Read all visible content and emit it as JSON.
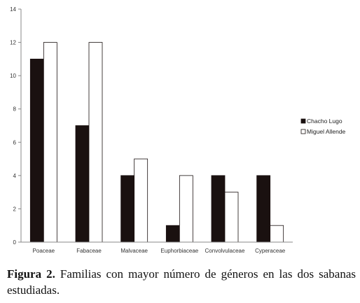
{
  "chart_data": {
    "type": "bar",
    "categories": [
      "Poaceae",
      "Fabaceae",
      "Malvaceae",
      "Euphorbiaceae",
      "Convolvulaceae",
      "Cyperaceae"
    ],
    "series": [
      {
        "name": "Chacho Lugo",
        "values": [
          11,
          7,
          4,
          1,
          4,
          4
        ],
        "color": "#1a1110"
      },
      {
        "name": "Miguel Allende",
        "values": [
          12,
          12,
          5,
          4,
          3,
          1
        ],
        "color": "#ffffff"
      }
    ],
    "y_ticks": [
      "0",
      "2",
      "4",
      "6",
      "8",
      "10",
      "12",
      "14"
    ],
    "ylim": [
      0,
      14
    ],
    "grid": false,
    "legend_position": "right"
  },
  "caption": {
    "label": "Figura 2.",
    "text": " Familias con mayor número de géneros en las dos sabanas estudiadas."
  }
}
